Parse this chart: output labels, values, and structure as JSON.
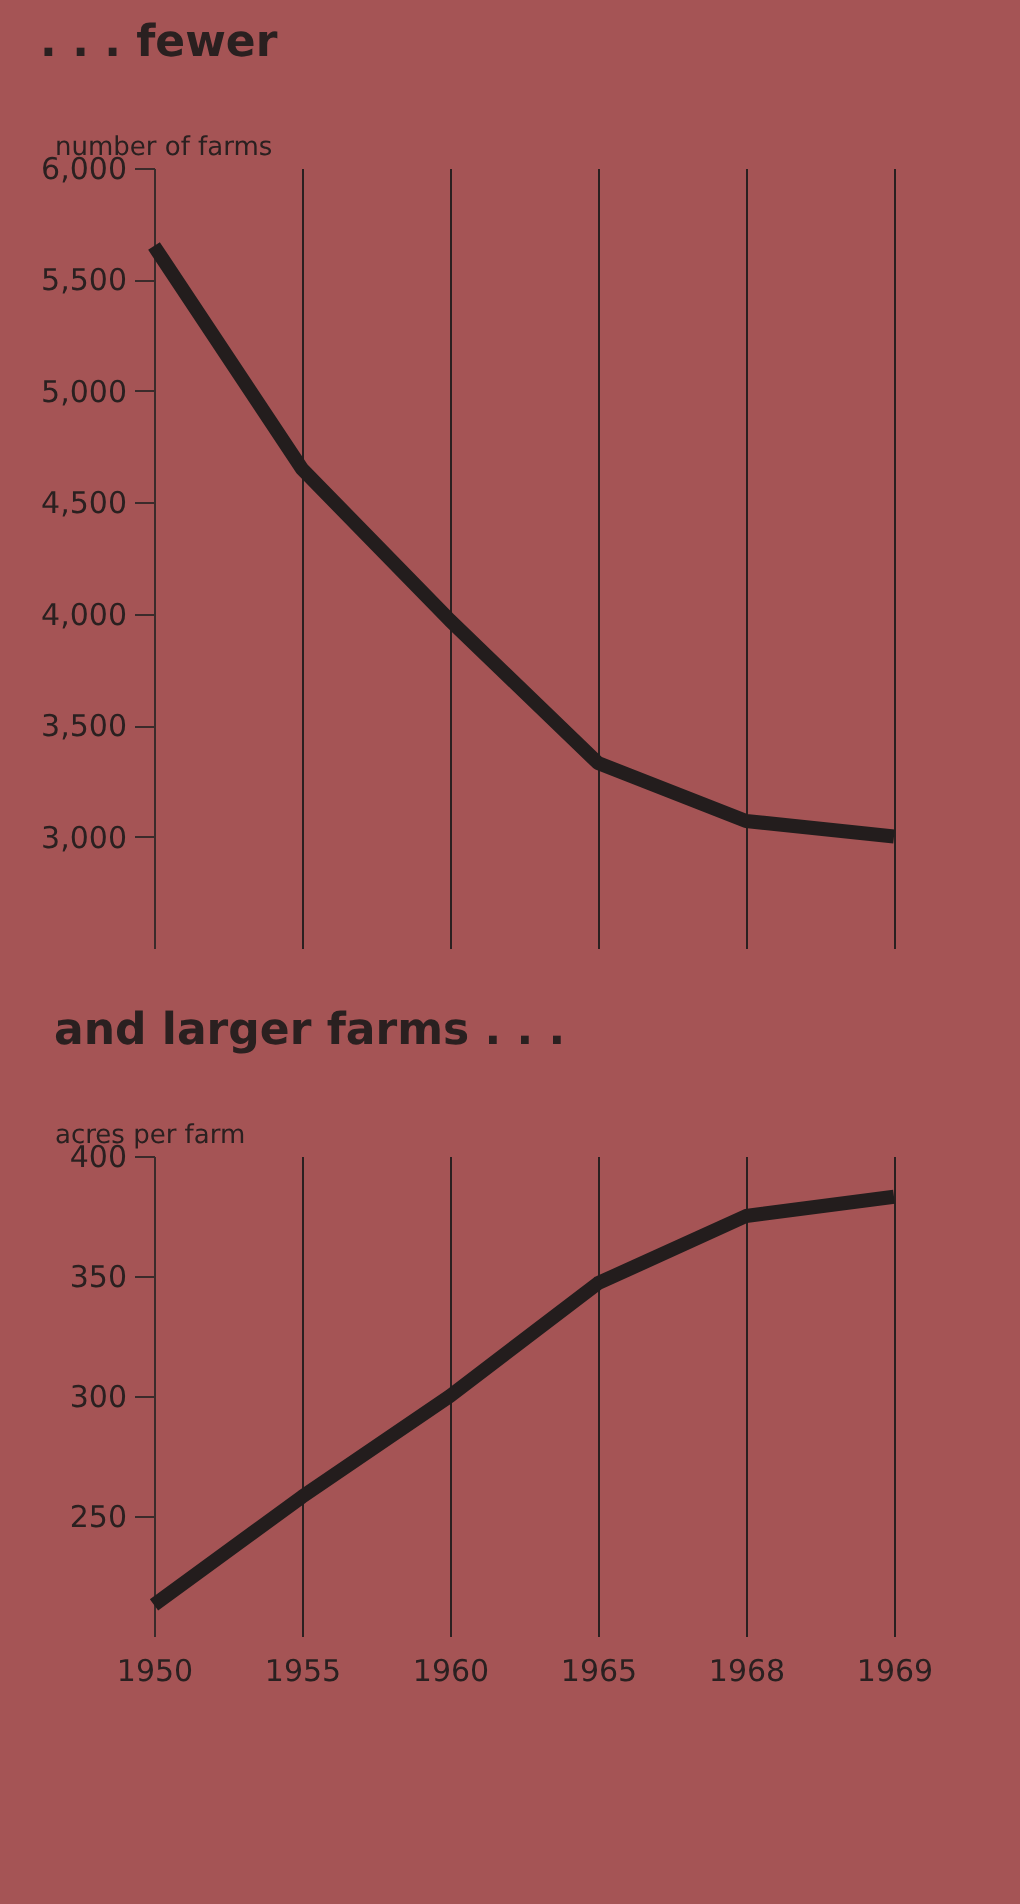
{
  "chart_data": [
    {
      "type": "line",
      "title": ". . . fewer",
      "ylabel": "number of farms",
      "categories": [
        "1950",
        "1955",
        "1960",
        "1965",
        "1968",
        "1969"
      ],
      "series": [
        {
          "color": "#231d1d",
          "values": [
            5650,
            4650,
            3970,
            3330,
            3070,
            3000
          ]
        }
      ],
      "ylim": [
        2500,
        6000
      ],
      "yticks": [
        {
          "value": 3000,
          "label": "3,000"
        },
        {
          "value": 3500,
          "label": "3,500"
        },
        {
          "value": 4000,
          "label": "4,000"
        },
        {
          "value": 4500,
          "label": "4,500"
        },
        {
          "value": 5000,
          "label": "5,000"
        },
        {
          "value": 5500,
          "label": "5,500"
        },
        {
          "value": 6000,
          "label": "6,000"
        }
      ],
      "grid": "x",
      "tick_labels": "y"
    },
    {
      "type": "line",
      "title": "and larger farms . . .",
      "ylabel": "acres per farm",
      "categories": [
        "1950",
        "1955",
        "1960",
        "1965",
        "1968",
        "1969"
      ],
      "series": [
        {
          "color": "#231d1d",
          "values": [
            213,
            258,
            300,
            347,
            375,
            383
          ]
        }
      ],
      "ylim": [
        200,
        400
      ],
      "yticks": [
        250,
        300,
        350,
        400
      ],
      "grid": "x"
    }
  ]
}
